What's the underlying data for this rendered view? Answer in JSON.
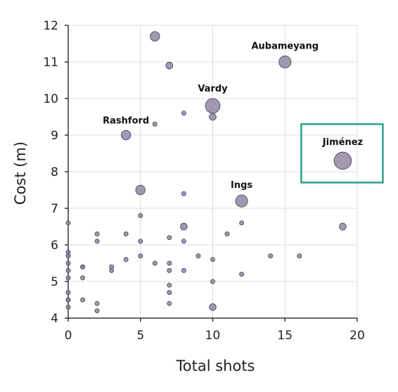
{
  "chart_data": {
    "type": "scatter",
    "xlabel": "Total shots",
    "ylabel": "Cost (m)",
    "xlim": [
      0,
      20
    ],
    "ylim": [
      4,
      12
    ],
    "x_ticks": [
      0,
      5,
      10,
      15,
      20
    ],
    "y_ticks": [
      4,
      5,
      6,
      7,
      8,
      9,
      10,
      11,
      12
    ],
    "grid": true,
    "colors": {
      "point_fill": "#8a7f9c",
      "point_stroke": "#5a4f6e",
      "highlight_box": "#2aa38a",
      "axis": "#333333",
      "grid": "#dcdcdc"
    },
    "points": [
      {
        "x": 0,
        "y": 6.6,
        "size": 1
      },
      {
        "x": 0,
        "y": 5.8,
        "size": 1
      },
      {
        "x": 0,
        "y": 5.7,
        "size": 1
      },
      {
        "x": 0,
        "y": 5.5,
        "size": 1
      },
      {
        "x": 0,
        "y": 5.3,
        "size": 1
      },
      {
        "x": 0,
        "y": 5.1,
        "size": 1
      },
      {
        "x": 0,
        "y": 4.7,
        "size": 1
      },
      {
        "x": 0,
        "y": 4.5,
        "size": 1
      },
      {
        "x": 0,
        "y": 4.5,
        "size": 1
      },
      {
        "x": 0,
        "y": 4.3,
        "size": 1
      },
      {
        "x": 1,
        "y": 5.4,
        "size": 1
      },
      {
        "x": 1,
        "y": 5.4,
        "size": 1
      },
      {
        "x": 1,
        "y": 5.1,
        "size": 1
      },
      {
        "x": 1,
        "y": 4.5,
        "size": 1
      },
      {
        "x": 2,
        "y": 6.3,
        "size": 1
      },
      {
        "x": 2,
        "y": 6.1,
        "size": 1
      },
      {
        "x": 2,
        "y": 4.4,
        "size": 1
      },
      {
        "x": 2,
        "y": 4.2,
        "size": 1
      },
      {
        "x": 3,
        "y": 5.4,
        "size": 1
      },
      {
        "x": 3,
        "y": 5.3,
        "size": 1
      },
      {
        "x": 4,
        "y": 9.0,
        "size": 3,
        "label": "Rashford"
      },
      {
        "x": 4,
        "y": 6.3,
        "size": 1
      },
      {
        "x": 4,
        "y": 5.6,
        "size": 1
      },
      {
        "x": 5,
        "y": 7.5,
        "size": 3
      },
      {
        "x": 5,
        "y": 6.8,
        "size": 1
      },
      {
        "x": 5,
        "y": 6.1,
        "size": 1
      },
      {
        "x": 5,
        "y": 5.7,
        "size": 1
      },
      {
        "x": 6,
        "y": 11.7,
        "size": 3
      },
      {
        "x": 6,
        "y": 9.3,
        "size": 1
      },
      {
        "x": 6,
        "y": 5.5,
        "size": 1
      },
      {
        "x": 7,
        "y": 10.9,
        "size": 2
      },
      {
        "x": 7,
        "y": 6.2,
        "size": 1
      },
      {
        "x": 7,
        "y": 5.5,
        "size": 1
      },
      {
        "x": 7,
        "y": 5.3,
        "size": 1
      },
      {
        "x": 7,
        "y": 4.9,
        "size": 1
      },
      {
        "x": 7,
        "y": 4.7,
        "size": 1
      },
      {
        "x": 7,
        "y": 4.4,
        "size": 1
      },
      {
        "x": 8,
        "y": 9.6,
        "size": 1
      },
      {
        "x": 8,
        "y": 7.4,
        "size": 1
      },
      {
        "x": 8,
        "y": 6.5,
        "size": 2
      },
      {
        "x": 8,
        "y": 6.1,
        "size": 1
      },
      {
        "x": 8,
        "y": 5.3,
        "size": 1
      },
      {
        "x": 9,
        "y": 5.7,
        "size": 1
      },
      {
        "x": 10,
        "y": 9.8,
        "size": 5,
        "label": "Vardy"
      },
      {
        "x": 10,
        "y": 9.5,
        "size": 2
      },
      {
        "x": 10,
        "y": 5.6,
        "size": 1
      },
      {
        "x": 10,
        "y": 5.0,
        "size": 1
      },
      {
        "x": 10,
        "y": 4.3,
        "size": 2
      },
      {
        "x": 11,
        "y": 6.3,
        "size": 1
      },
      {
        "x": 12,
        "y": 7.2,
        "size": 4,
        "label": "Ings"
      },
      {
        "x": 12,
        "y": 6.6,
        "size": 1
      },
      {
        "x": 12,
        "y": 5.2,
        "size": 1
      },
      {
        "x": 14,
        "y": 5.7,
        "size": 1
      },
      {
        "x": 15,
        "y": 11.0,
        "size": 4,
        "label": "Aubameyang"
      },
      {
        "x": 16,
        "y": 5.7,
        "size": 1
      },
      {
        "x": 19,
        "y": 8.3,
        "size": 6,
        "label": "Jiménez",
        "highlighted": true
      },
      {
        "x": 19,
        "y": 6.5,
        "size": 2
      }
    ]
  }
}
